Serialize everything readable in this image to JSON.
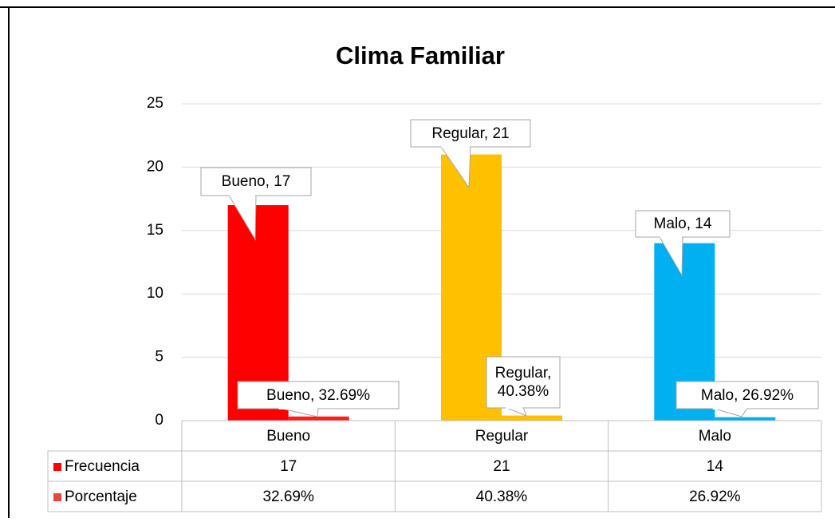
{
  "chart_data": {
    "type": "bar",
    "title": "Clima Familiar",
    "categories": [
      "Bueno",
      "Regular",
      "Malo"
    ],
    "series": [
      {
        "name": "Frecuencia",
        "color": "#ff0000",
        "point_colors": [
          "#ff0000",
          "#ffc000",
          "#00b0f0"
        ],
        "values": [
          17,
          21,
          14
        ]
      },
      {
        "name": "Porcentaje",
        "color": "#e8473a",
        "point_colors": [
          "#ff1a1a",
          "#ffc000",
          "#00b0f0"
        ],
        "values": [
          0.3269,
          0.4038,
          0.2692
        ],
        "value_labels": [
          "32.69%",
          "40.38%",
          "26.92%"
        ]
      }
    ],
    "ylim": [
      0,
      25
    ],
    "yticks": [
      0,
      5,
      10,
      15,
      20,
      25
    ],
    "grid": true,
    "data_table": true
  }
}
